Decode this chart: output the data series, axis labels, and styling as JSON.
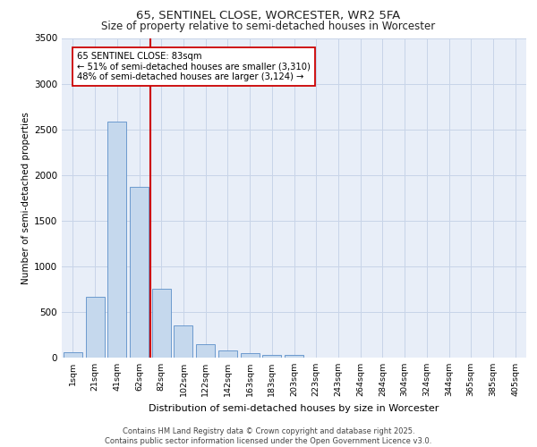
{
  "title_line1": "65, SENTINEL CLOSE, WORCESTER, WR2 5FA",
  "title_line2": "Size of property relative to semi-detached houses in Worcester",
  "xlabel": "Distribution of semi-detached houses by size in Worcester",
  "ylabel": "Number of semi-detached properties",
  "footnote": "Contains HM Land Registry data © Crown copyright and database right 2025.\nContains public sector information licensed under the Open Government Licence v3.0.",
  "bar_labels": [
    "1sqm",
    "21sqm",
    "41sqm",
    "62sqm",
    "82sqm",
    "102sqm",
    "122sqm",
    "142sqm",
    "163sqm",
    "183sqm",
    "203sqm",
    "223sqm",
    "243sqm",
    "264sqm",
    "284sqm",
    "304sqm",
    "324sqm",
    "344sqm",
    "365sqm",
    "385sqm",
    "405sqm"
  ],
  "bar_values": [
    60,
    670,
    2580,
    1870,
    750,
    350,
    150,
    75,
    50,
    30,
    25,
    0,
    0,
    0,
    0,
    0,
    0,
    0,
    0,
    0,
    0
  ],
  "bar_color": "#c5d8ed",
  "bar_edge_color": "#5b8fc9",
  "grid_color": "#c8d4e8",
  "bg_color": "#e8eef8",
  "vline_color": "#cc0000",
  "vline_pos": 3.5,
  "annotation_text": "65 SENTINEL CLOSE: 83sqm\n← 51% of semi-detached houses are smaller (3,310)\n48% of semi-detached houses are larger (3,124) →",
  "ylim": [
    0,
    3500
  ],
  "yticks": [
    0,
    500,
    1000,
    1500,
    2000,
    2500,
    3000,
    3500
  ]
}
